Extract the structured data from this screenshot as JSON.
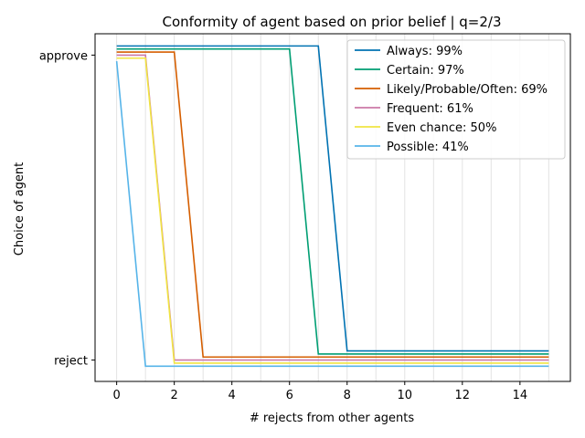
{
  "chart_data": {
    "type": "line",
    "title": "Conformity of agent based on prior belief | q=2/3",
    "xlabel": "# rejects from other agents",
    "ylabel": "Choice of agent",
    "xlim": [
      -0.75,
      15.75
    ],
    "xticks": [
      0,
      2,
      4,
      6,
      8,
      10,
      12,
      14
    ],
    "x_gridlines": [
      0,
      1,
      2,
      3,
      4,
      5,
      6,
      7,
      8,
      9,
      10,
      11,
      12,
      13,
      14,
      15
    ],
    "ylim": [
      -0.07,
      1.07
    ],
    "yticks": [
      {
        "value": 0,
        "label": "reject"
      },
      {
        "value": 1,
        "label": "approve"
      }
    ],
    "grid": "x-only",
    "legend_position": "upper right",
    "x": [
      0,
      1,
      2,
      3,
      4,
      5,
      6,
      7,
      8,
      9,
      10,
      11,
      12,
      13,
      14,
      15
    ],
    "series": [
      {
        "name": "Always: 99%",
        "color": "#0072b2",
        "values": [
          1.03,
          1.03,
          1.03,
          1.03,
          1.03,
          1.03,
          1.03,
          1.03,
          0.03,
          0.03,
          0.03,
          0.03,
          0.03,
          0.03,
          0.03,
          0.03
        ]
      },
      {
        "name": "Certain: 97%",
        "color": "#009e73",
        "values": [
          1.02,
          1.02,
          1.02,
          1.02,
          1.02,
          1.02,
          1.02,
          0.02,
          0.02,
          0.02,
          0.02,
          0.02,
          0.02,
          0.02,
          0.02,
          0.02
        ]
      },
      {
        "name": "Likely/Probable/Often: 69%",
        "color": "#d55e00",
        "values": [
          1.01,
          1.01,
          1.01,
          0.01,
          0.01,
          0.01,
          0.01,
          0.01,
          0.01,
          0.01,
          0.01,
          0.01,
          0.01,
          0.01,
          0.01,
          0.01
        ]
      },
      {
        "name": "Frequent: 61%",
        "color": "#cc79a7",
        "values": [
          1.0,
          1.0,
          0.0,
          0.0,
          0.0,
          0.0,
          0.0,
          0.0,
          0.0,
          0.0,
          0.0,
          0.0,
          0.0,
          0.0,
          0.0,
          0.0
        ]
      },
      {
        "name": "Even chance: 50%",
        "color": "#f0e442",
        "values": [
          0.99,
          0.99,
          -0.01,
          -0.01,
          -0.01,
          -0.01,
          -0.01,
          -0.01,
          -0.01,
          -0.01,
          -0.01,
          -0.01,
          -0.01,
          -0.01,
          -0.01,
          -0.01
        ]
      },
      {
        "name": "Possible: 41%",
        "color": "#56b4e9",
        "values": [
          0.98,
          -0.02,
          -0.02,
          -0.02,
          -0.02,
          -0.02,
          -0.02,
          -0.02,
          -0.02,
          -0.02,
          -0.02,
          -0.02,
          -0.02,
          -0.02,
          -0.02,
          -0.02
        ]
      }
    ]
  }
}
